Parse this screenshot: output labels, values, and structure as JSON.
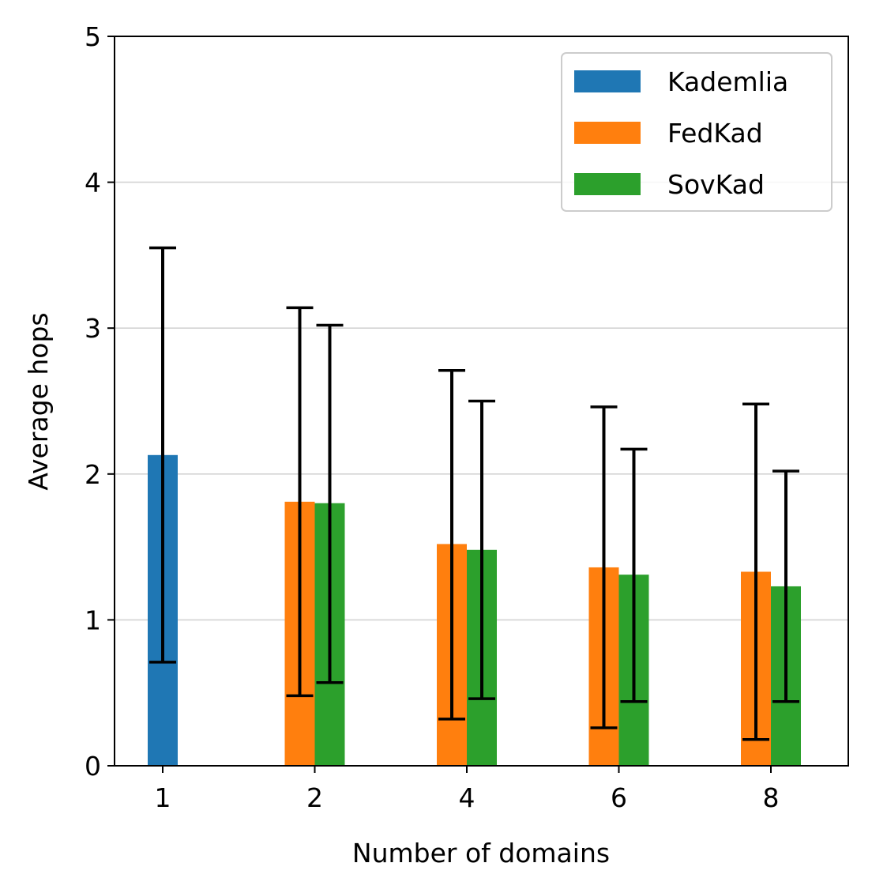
{
  "chart_data": {
    "type": "bar",
    "xlabel": "Number of domains",
    "ylabel": "Average hops",
    "categories": [
      "1",
      "2",
      "4",
      "6",
      "8"
    ],
    "ylim": [
      0,
      5
    ],
    "yticks": [
      "0",
      "1",
      "2",
      "3",
      "4",
      "5"
    ],
    "grid": "horizontal",
    "legend_position": "top-right",
    "series": [
      {
        "name": "Kademlia",
        "color": "#1f77b4",
        "values": [
          2.13,
          null,
          null,
          null,
          null
        ],
        "err_low": [
          0.71,
          null,
          null,
          null,
          null
        ],
        "err_high": [
          3.55,
          null,
          null,
          null,
          null
        ]
      },
      {
        "name": "FedKad",
        "color": "#ff7f0e",
        "values": [
          null,
          1.81,
          1.52,
          1.36,
          1.33
        ],
        "err_low": [
          null,
          0.48,
          0.32,
          0.26,
          0.18
        ],
        "err_high": [
          null,
          3.14,
          2.71,
          2.46,
          2.48
        ]
      },
      {
        "name": "SovKad",
        "color": "#2ca02c",
        "values": [
          null,
          1.8,
          1.48,
          1.31,
          1.23
        ],
        "err_low": [
          null,
          0.57,
          0.46,
          0.44,
          0.44
        ],
        "err_high": [
          null,
          3.02,
          2.5,
          2.17,
          2.02
        ]
      }
    ]
  }
}
